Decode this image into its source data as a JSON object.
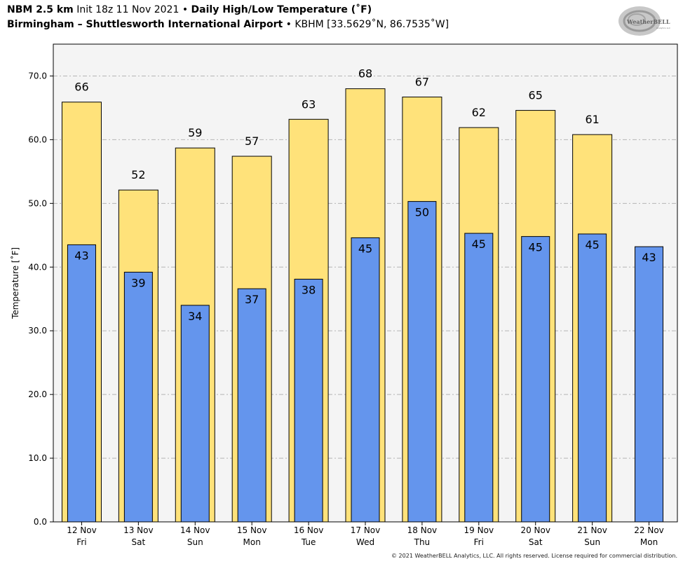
{
  "header": {
    "model": "NBM 2.5 km",
    "init": "Init 18z 11 Nov 2021",
    "bullet": "•",
    "product": "Daily High/Low Temperature (˚F)",
    "station_name": "Birmingham – Shuttlesworth International Airport",
    "station_info": "KBHM [33.5629˚N, 86.7535˚W]"
  },
  "logo": {
    "text": "WeatherBELL",
    "subtext": "Analytics LLC"
  },
  "copyright": "© 2021 WeatherBELL Analytics, LLC. All rights reserved. License required for commercial distribution.",
  "colors": {
    "high": "#ffe27a",
    "low": "#6495ed",
    "plot_bg": "#f4f4f4"
  },
  "chart_data": {
    "type": "bar",
    "ylabel": "Temperature [˚F]",
    "ylim": [
      0,
      75
    ],
    "yticks": [
      "0.0",
      "10.0",
      "20.0",
      "30.0",
      "40.0",
      "50.0",
      "60.0",
      "70.0"
    ],
    "grid": true,
    "categories": [
      [
        "12 Nov",
        "Fri"
      ],
      [
        "13 Nov",
        "Sat"
      ],
      [
        "14 Nov",
        "Sun"
      ],
      [
        "15 Nov",
        "Mon"
      ],
      [
        "16 Nov",
        "Tue"
      ],
      [
        "17 Nov",
        "Wed"
      ],
      [
        "18 Nov",
        "Thu"
      ],
      [
        "19 Nov",
        "Fri"
      ],
      [
        "20 Nov",
        "Sat"
      ],
      [
        "21 Nov",
        "Sun"
      ],
      [
        "22 Nov",
        "Mon"
      ]
    ],
    "series": [
      {
        "values": [
          65.9,
          52.1,
          58.7,
          57.4,
          63.2,
          68.0,
          66.7,
          61.9,
          64.6,
          60.8,
          null
        ],
        "labels": [
          "66",
          "52",
          "59",
          "57",
          "63",
          "68",
          "67",
          "62",
          "65",
          "61",
          ""
        ]
      },
      {
        "values": [
          43.5,
          39.2,
          34.0,
          36.6,
          38.1,
          44.6,
          50.3,
          45.3,
          44.8,
          45.2,
          43.2
        ],
        "labels": [
          "43",
          "39",
          "34",
          "37",
          "38",
          "45",
          "50",
          "45",
          "45",
          "45",
          "43"
        ]
      }
    ]
  }
}
